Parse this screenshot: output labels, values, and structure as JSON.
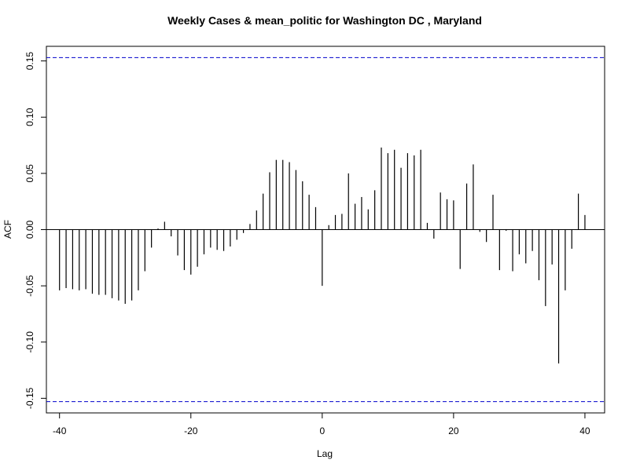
{
  "chart_data": {
    "type": "bar",
    "title": "Weekly Cases & mean_politic for Washington DC , Maryland",
    "xlabel": "Lag",
    "ylabel": "ACF",
    "xlim": [
      -42,
      43
    ],
    "ylim": [
      -0.163,
      0.163
    ],
    "xticks": [
      -40,
      -20,
      0,
      20,
      40
    ],
    "xtick_labels": [
      "-40",
      "-20",
      "0",
      "20",
      "40"
    ],
    "yticks": [
      -0.15,
      -0.1,
      -0.05,
      0.0,
      0.05,
      0.1,
      0.15
    ],
    "ytick_labels": [
      "-0.15",
      "-0.10",
      "-0.05",
      "0.00",
      "0.05",
      "0.10",
      "0.15"
    ],
    "confidence_band": 0.153,
    "colors": {
      "bars": "#000000",
      "band": "#0000cc",
      "zero_line": "#000000"
    },
    "x": [
      -40,
      -39,
      -38,
      -37,
      -36,
      -35,
      -34,
      -33,
      -32,
      -31,
      -30,
      -29,
      -28,
      -27,
      -26,
      -25,
      -24,
      -23,
      -22,
      -21,
      -20,
      -19,
      -18,
      -17,
      -16,
      -15,
      -14,
      -13,
      -12,
      -11,
      -10,
      -9,
      -8,
      -7,
      -6,
      -5,
      -4,
      -3,
      -2,
      -1,
      0,
      1,
      2,
      3,
      4,
      5,
      6,
      7,
      8,
      9,
      10,
      11,
      12,
      13,
      14,
      15,
      16,
      17,
      18,
      19,
      20,
      21,
      22,
      23,
      24,
      25,
      26,
      27,
      28,
      29,
      30,
      31,
      32,
      33,
      34,
      35,
      36,
      37,
      38,
      39,
      40
    ],
    "values": [
      -0.054,
      -0.052,
      -0.053,
      -0.054,
      -0.053,
      -0.057,
      -0.058,
      -0.058,
      -0.061,
      -0.063,
      -0.066,
      -0.063,
      -0.054,
      -0.037,
      -0.016,
      0.001,
      0.007,
      -0.006,
      -0.023,
      -0.036,
      -0.04,
      -0.033,
      -0.022,
      -0.016,
      -0.018,
      -0.019,
      -0.015,
      -0.009,
      -0.003,
      0.005,
      0.017,
      0.032,
      0.051,
      0.062,
      0.062,
      0.06,
      0.053,
      0.043,
      0.031,
      0.02,
      -0.05,
      0.004,
      0.013,
      0.014,
      0.05,
      0.023,
      0.029,
      0.018,
      0.035,
      0.073,
      0.068,
      0.071,
      0.055,
      0.068,
      0.066,
      0.071,
      0.006,
      -0.008,
      0.033,
      0.027,
      0.026,
      -0.035,
      0.041,
      0.058,
      -0.002,
      -0.011,
      0.031,
      -0.036,
      -0.001,
      -0.037,
      -0.022,
      -0.03,
      -0.019,
      -0.045,
      -0.068,
      -0.031,
      -0.119,
      -0.054,
      -0.017,
      0.032,
      0.013
    ]
  }
}
